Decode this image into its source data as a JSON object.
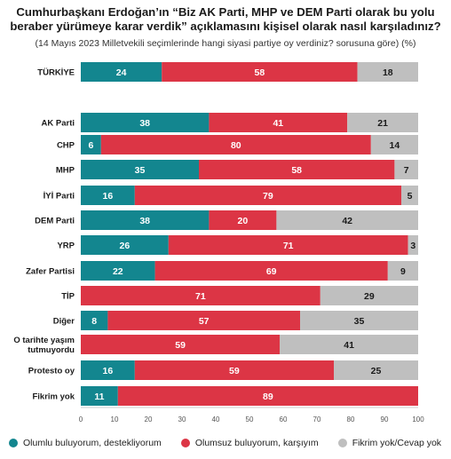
{
  "title_line1": "Cumhurbaşkanı Erdoğan’ın “Biz AK Parti, MHP ve DEM Parti olarak bu yolu",
  "title_line2": "beraber yürümeye karar verdik” açıklamasını kişisel olarak nasıl karşıladınız?",
  "subtitle": "(14 Mayıs 2023 Milletvekili seçimlerinde hangi siyasi partiye oy verdiniz? sorusuna göre) (%)",
  "colors": {
    "positive": "#13868f",
    "negative": "#dc3545",
    "neutral": "#bfbfbf"
  },
  "chart_data": {
    "type": "bar",
    "orientation": "horizontal",
    "stacked": true,
    "categories": [
      "TÜRKİYE",
      "AK Parti",
      "CHP",
      "MHP",
      "İYİ Parti",
      "DEM Parti",
      "YRP",
      "Zafer Partisi",
      "TİP",
      "Diğer",
      "O tarihte yaşım tutmuyordu",
      "Protesto oy",
      "Fikrim yok"
    ],
    "series": [
      {
        "name": "Olumlu buluyorum, destekliyorum",
        "values": [
          24,
          38,
          6,
          35,
          16,
          38,
          26,
          22,
          0,
          8,
          0,
          16,
          11
        ]
      },
      {
        "name": "Olumsuz buluyorum, karşıyım",
        "values": [
          58,
          41,
          80,
          58,
          79,
          20,
          71,
          69,
          71,
          57,
          59,
          59,
          89
        ]
      },
      {
        "name": "Fikrim yok/Cevap yok",
        "values": [
          18,
          21,
          14,
          7,
          5,
          42,
          3,
          9,
          29,
          35,
          41,
          25,
          0
        ]
      }
    ],
    "xlim": [
      0,
      100
    ],
    "xticks": [
      0,
      10,
      20,
      30,
      40,
      50,
      60,
      70,
      80,
      90,
      100
    ],
    "legend_position": "bottom"
  }
}
